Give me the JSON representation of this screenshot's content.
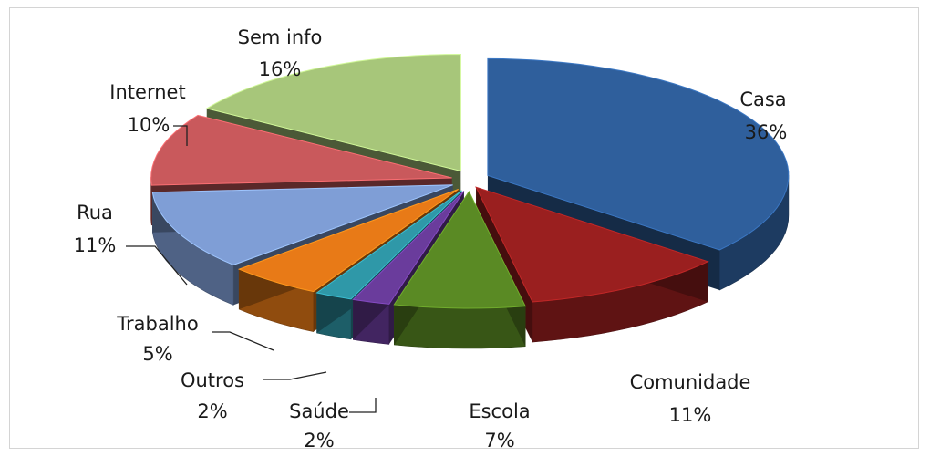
{
  "chart_data": {
    "type": "pie",
    "variant": "3d-exploded",
    "title": "",
    "slices": [
      {
        "label": "Casa",
        "pct_label": "36%",
        "value": 36,
        "color": "#2f5f9c"
      },
      {
        "label": "Comunidade",
        "pct_label": "11%",
        "value": 11,
        "color": "#9a1f1f"
      },
      {
        "label": "Escola",
        "pct_label": "7%",
        "value": 7,
        "color": "#5a8a24"
      },
      {
        "label": "Saúde",
        "pct_label": "2%",
        "value": 2,
        "color": "#6a3c9c"
      },
      {
        "label": "Outros",
        "pct_label": "2%",
        "value": 2,
        "color": "#2f98a8"
      },
      {
        "label": "Trabalho",
        "pct_label": "5%",
        "value": 5,
        "color": "#e87a17"
      },
      {
        "label": "Rua",
        "pct_label": "11%",
        "value": 11,
        "color": "#7f9ed6"
      },
      {
        "label": "Internet",
        "pct_label": "10%",
        "value": 10,
        "color": "#c9595c"
      },
      {
        "label": "Sem info",
        "pct_label": "16%",
        "value": 16,
        "color": "#a7c67a"
      }
    ],
    "legend": "none",
    "labels": "outside with leader lines"
  }
}
